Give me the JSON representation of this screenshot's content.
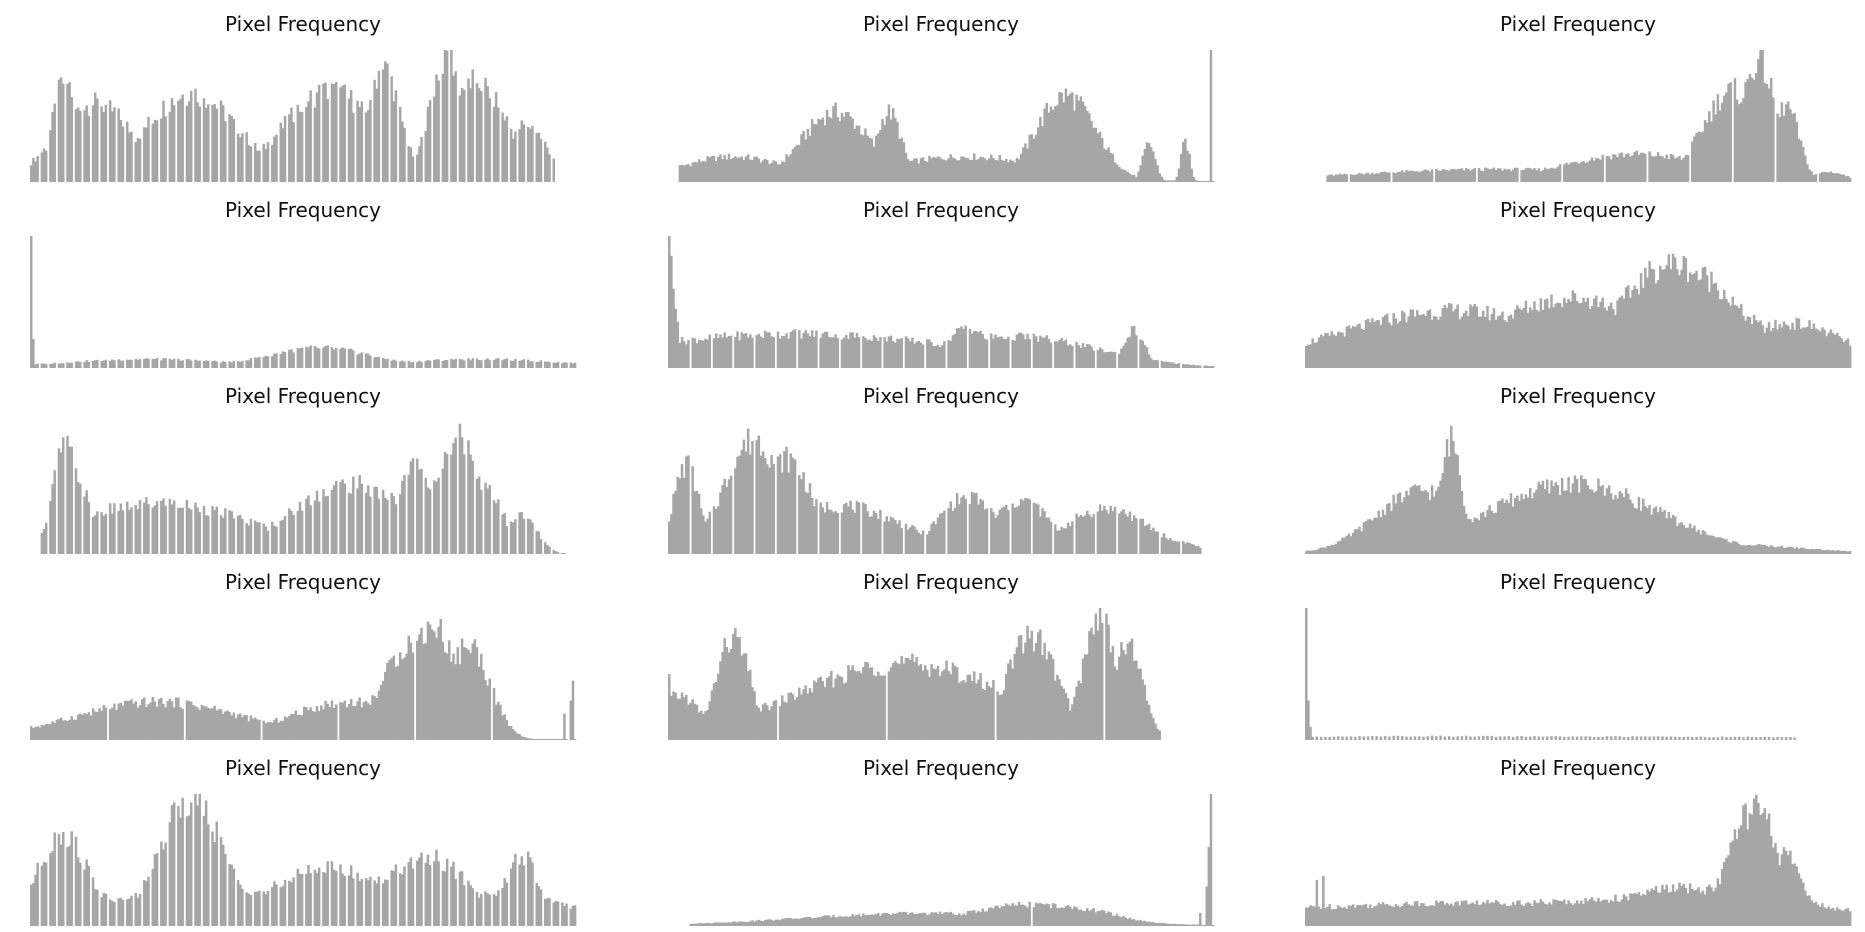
{
  "figure": {
    "bar_color": "#a6a6a6",
    "background": "#ffffff"
  },
  "chart_data": [
    {
      "type": "bar",
      "title": "Pixel Frequency",
      "grid": false,
      "axes_visible": false,
      "color": "#a6a6a6",
      "xlim": [
        0,
        255
      ],
      "ylim": [
        0,
        1
      ],
      "peaks": [
        {
          "at": 10,
          "width": 2,
          "height": 0.06
        },
        {
          "at": 14,
          "width": 3,
          "height": 0.3
        },
        {
          "at": 16,
          "width": 6,
          "height": 0.8
        },
        {
          "at": 30,
          "width": 18,
          "height": 0.62
        },
        {
          "at": 75,
          "width": 22,
          "height": 0.7
        },
        {
          "at": 140,
          "width": 22,
          "height": 0.72
        },
        {
          "at": 165,
          "width": 8,
          "height": 0.9
        },
        {
          "at": 195,
          "width": 8,
          "height": 1.0
        },
        {
          "at": 208,
          "width": 15,
          "height": 0.8
        },
        {
          "at": 232,
          "width": 10,
          "height": 0.45
        }
      ],
      "floor": 0.0,
      "start": 0,
      "end": 245,
      "comb": {
        "period": 4,
        "depth": 1.0
      },
      "spikes": []
    },
    {
      "type": "bar",
      "title": "Pixel Frequency",
      "grid": false,
      "axes_visible": false,
      "color": "#a6a6a6",
      "xlim": [
        0,
        255
      ],
      "ylim": [
        0,
        1
      ],
      "peaks": [
        {
          "at": 30,
          "width": 25,
          "height": 0.2
        },
        {
          "at": 78,
          "width": 16,
          "height": 0.55
        },
        {
          "at": 103,
          "width": 6,
          "height": 0.55
        },
        {
          "at": 140,
          "width": 40,
          "height": 0.2
        },
        {
          "at": 186,
          "width": 14,
          "height": 0.68
        },
        {
          "at": 225,
          "width": 3,
          "height": 0.3
        },
        {
          "at": 242,
          "width": 2,
          "height": 0.32
        }
      ],
      "floor": 0.0,
      "start": 5,
      "end": 255,
      "comb": null,
      "spikes": [
        {
          "at": 254,
          "height": 1.0
        }
      ]
    },
    {
      "type": "bar",
      "title": "Pixel Frequency",
      "grid": false,
      "axes_visible": false,
      "color": "#a6a6a6",
      "xlim": [
        0,
        255
      ],
      "ylim": [
        0,
        1
      ],
      "peaks": [
        {
          "at": 90,
          "width": 70,
          "height": 0.1
        },
        {
          "at": 155,
          "width": 35,
          "height": 0.22
        },
        {
          "at": 200,
          "width": 14,
          "height": 0.72
        },
        {
          "at": 212,
          "width": 8,
          "height": 0.95
        },
        {
          "at": 225,
          "width": 6,
          "height": 0.6
        },
        {
          "at": 245,
          "width": 8,
          "height": 0.08
        }
      ],
      "floor": 0.0,
      "start": 10,
      "end": 255,
      "comb": {
        "period": 20,
        "depth": 1.0
      },
      "spikes": []
    },
    {
      "type": "bar",
      "title": "Pixel Frequency",
      "grid": false,
      "axes_visible": false,
      "color": "#a6a6a6",
      "xlim": [
        0,
        255
      ],
      "ylim": [
        0,
        1
      ],
      "peaks": [
        {
          "at": 55,
          "width": 40,
          "height": 0.07
        },
        {
          "at": 135,
          "width": 25,
          "height": 0.16
        },
        {
          "at": 210,
          "width": 40,
          "height": 0.07
        }
      ],
      "floor": 0.02,
      "start": 0,
      "end": 255,
      "comb": {
        "period": 4,
        "depth": 1.0
      },
      "spikes": [
        {
          "at": 0,
          "height": 1.0
        },
        {
          "at": 1,
          "height": 0.22
        }
      ]
    },
    {
      "type": "bar",
      "title": "Pixel Frequency",
      "grid": false,
      "axes_visible": false,
      "color": "#a6a6a6",
      "xlim": [
        0,
        255
      ],
      "ylim": [
        0,
        1
      ],
      "peaks": [
        {
          "at": 60,
          "width": 80,
          "height": 0.27
        },
        {
          "at": 140,
          "width": 10,
          "height": 0.32
        },
        {
          "at": 160,
          "width": 40,
          "height": 0.25
        },
        {
          "at": 218,
          "width": 5,
          "height": 0.3
        }
      ],
      "floor": 0.0,
      "start": 0,
      "end": 255,
      "comb": {
        "period": 10,
        "depth": 1.0
      },
      "spikes": [
        {
          "at": 0,
          "height": 1.0
        },
        {
          "at": 1,
          "height": 0.85
        },
        {
          "at": 2,
          "height": 0.6
        },
        {
          "at": 3,
          "height": 0.45
        },
        {
          "at": 4,
          "height": 0.35
        }
      ]
    },
    {
      "type": "bar",
      "title": "Pixel Frequency",
      "grid": false,
      "axes_visible": false,
      "color": "#a6a6a6",
      "xlim": [
        0,
        255
      ],
      "ylim": [
        0,
        1
      ],
      "peaks": [
        {
          "at": 70,
          "width": 55,
          "height": 0.45
        },
        {
          "at": 125,
          "width": 40,
          "height": 0.55
        },
        {
          "at": 172,
          "width": 25,
          "height": 0.82
        },
        {
          "at": 185,
          "width": 18,
          "height": 0.72
        },
        {
          "at": 228,
          "width": 25,
          "height": 0.35
        }
      ],
      "floor": 0.06,
      "start": 0,
      "end": 255,
      "comb": null,
      "spikes": []
    },
    {
      "type": "bar",
      "title": "Pixel Frequency",
      "grid": false,
      "axes_visible": false,
      "color": "#a6a6a6",
      "xlim": [
        0,
        255
      ],
      "ylim": [
        0,
        1
      ],
      "peaks": [
        {
          "at": 16,
          "width": 6,
          "height": 0.85
        },
        {
          "at": 22,
          "width": 5,
          "height": 0.62
        },
        {
          "at": 60,
          "width": 45,
          "height": 0.4
        },
        {
          "at": 150,
          "width": 28,
          "height": 0.55
        },
        {
          "at": 180,
          "width": 9,
          "height": 0.7
        },
        {
          "at": 200,
          "width": 10,
          "height": 0.95
        },
        {
          "at": 213,
          "width": 8,
          "height": 0.55
        },
        {
          "at": 230,
          "width": 7,
          "height": 0.3
        }
      ],
      "floor": 0.0,
      "start": 5,
      "end": 250,
      "comb": {
        "period": 4,
        "depth": 1.0
      },
      "spikes": []
    },
    {
      "type": "bar",
      "title": "Pixel Frequency",
      "grid": false,
      "axes_visible": false,
      "color": "#a6a6a6",
      "xlim": [
        0,
        255
      ],
      "ylim": [
        0,
        1
      ],
      "peaks": [
        {
          "at": 8,
          "width": 6,
          "height": 0.7
        },
        {
          "at": 40,
          "width": 14,
          "height": 0.9
        },
        {
          "at": 55,
          "width": 12,
          "height": 0.75
        },
        {
          "at": 80,
          "width": 30,
          "height": 0.38
        },
        {
          "at": 140,
          "width": 14,
          "height": 0.45
        },
        {
          "at": 165,
          "width": 14,
          "height": 0.42
        },
        {
          "at": 205,
          "width": 20,
          "height": 0.36
        },
        {
          "at": 238,
          "width": 10,
          "height": 0.1
        }
      ],
      "floor": 0.0,
      "start": 0,
      "end": 250,
      "comb": {
        "period": 10,
        "depth": 1.0
      },
      "spikes": []
    },
    {
      "type": "bar",
      "title": "Pixel Frequency",
      "grid": false,
      "axes_visible": false,
      "color": "#a6a6a6",
      "xlim": [
        0,
        255
      ],
      "ylim": [
        0,
        1
      ],
      "peaks": [
        {
          "at": 55,
          "width": 22,
          "height": 0.5
        },
        {
          "at": 68,
          "width": 5,
          "height": 0.9
        },
        {
          "at": 125,
          "width": 40,
          "height": 0.55
        },
        {
          "at": 190,
          "width": 40,
          "height": 0.08
        },
        {
          "at": 240,
          "width": 20,
          "height": 0.02
        }
      ],
      "floor": 0.0,
      "start": 0,
      "end": 255,
      "comb": null,
      "spikes": []
    },
    {
      "type": "bar",
      "title": "Pixel Frequency",
      "grid": false,
      "axes_visible": false,
      "color": "#a6a6a6",
      "xlim": [
        0,
        255
      ],
      "ylim": [
        0,
        1
      ],
      "peaks": [
        {
          "at": 60,
          "width": 40,
          "height": 0.3
        },
        {
          "at": 150,
          "width": 30,
          "height": 0.3
        },
        {
          "at": 180,
          "width": 15,
          "height": 0.78
        },
        {
          "at": 188,
          "width": 12,
          "height": 0.9
        },
        {
          "at": 205,
          "width": 10,
          "height": 0.75
        }
      ],
      "floor": 0.0,
      "start": 0,
      "end": 255,
      "comb": {
        "period": 36,
        "depth": 1.0
      },
      "spikes": [
        {
          "at": 250,
          "height": 0.2
        },
        {
          "at": 253,
          "height": 0.3
        },
        {
          "at": 254,
          "height": 0.45
        }
      ]
    },
    {
      "type": "bar",
      "title": "Pixel Frequency",
      "grid": false,
      "axes_visible": false,
      "color": "#a6a6a6",
      "xlim": [
        0,
        255
      ],
      "ylim": [
        0,
        1
      ],
      "peaks": [
        {
          "at": 5,
          "width": 10,
          "height": 0.35
        },
        {
          "at": 30,
          "width": 8,
          "height": 0.8
        },
        {
          "at": 110,
          "width": 50,
          "height": 0.6
        },
        {
          "at": 170,
          "width": 12,
          "height": 0.82
        },
        {
          "at": 202,
          "width": 8,
          "height": 0.98
        },
        {
          "at": 215,
          "width": 7,
          "height": 0.75
        }
      ],
      "floor": 0.0,
      "start": 0,
      "end": 230,
      "comb": {
        "period": 51,
        "depth": 1.0
      },
      "spikes": [
        {
          "at": 0,
          "height": 0.5
        }
      ]
    },
    {
      "type": "bar",
      "title": "Pixel Frequency",
      "grid": false,
      "axes_visible": false,
      "color": "#a6a6a6",
      "xlim": [
        0,
        255
      ],
      "ylim": [
        0,
        1
      ],
      "peaks": [
        {
          "at": 60,
          "width": 80,
          "height": 0.03
        },
        {
          "at": 180,
          "width": 60,
          "height": 0.02
        }
      ],
      "floor": 0.015,
      "start": 0,
      "end": 230,
      "comb": {
        "period": 2,
        "depth": 1.0
      },
      "spikes": [
        {
          "at": 0,
          "height": 1.0
        },
        {
          "at": 1,
          "height": 0.3
        },
        {
          "at": 2,
          "height": 0.1
        }
      ]
    },
    {
      "type": "bar",
      "title": "Pixel Frequency",
      "grid": false,
      "axes_visible": false,
      "color": "#a6a6a6",
      "xlim": [
        0,
        255
      ],
      "ylim": [
        0,
        1
      ],
      "peaks": [
        {
          "at": 15,
          "width": 12,
          "height": 0.72
        },
        {
          "at": 75,
          "width": 15,
          "height": 1.0
        },
        {
          "at": 140,
          "width": 30,
          "height": 0.45
        },
        {
          "at": 185,
          "width": 20,
          "height": 0.55
        },
        {
          "at": 230,
          "width": 8,
          "height": 0.55
        }
      ],
      "floor": 0.15,
      "start": 0,
      "end": 255,
      "comb": {
        "period": 4,
        "depth": 1.0
      },
      "spikes": []
    },
    {
      "type": "bar",
      "title": "Pixel Frequency",
      "grid": false,
      "axes_visible": false,
      "color": "#a6a6a6",
      "xlim": [
        0,
        255
      ],
      "ylim": [
        0,
        1
      ],
      "peaks": [
        {
          "at": 120,
          "width": 60,
          "height": 0.1
        },
        {
          "at": 170,
          "width": 30,
          "height": 0.17
        },
        {
          "at": 190,
          "width": 20,
          "height": 0.14
        }
      ],
      "floor": 0.0,
      "start": 10,
      "end": 255,
      "comb": {
        "period": 170,
        "depth": 1.0
      },
      "spikes": [
        {
          "at": 249,
          "height": 0.1
        },
        {
          "at": 252,
          "height": 0.3
        },
        {
          "at": 253,
          "height": 0.6
        },
        {
          "at": 254,
          "height": 1.0
        }
      ]
    },
    {
      "type": "bar",
      "title": "Pixel Frequency",
      "grid": false,
      "axes_visible": false,
      "color": "#a6a6a6",
      "xlim": [
        0,
        255
      ],
      "ylim": [
        0,
        1
      ],
      "peaks": [
        {
          "at": 80,
          "width": 60,
          "height": 0.18
        },
        {
          "at": 175,
          "width": 30,
          "height": 0.3
        },
        {
          "at": 210,
          "width": 12,
          "height": 0.92
        },
        {
          "at": 225,
          "width": 8,
          "height": 0.55
        }
      ],
      "floor": 0.12,
      "start": 0,
      "end": 255,
      "comb": null,
      "spikes": [
        {
          "at": 5,
          "height": 0.35
        },
        {
          "at": 8,
          "height": 0.38
        }
      ]
    }
  ]
}
